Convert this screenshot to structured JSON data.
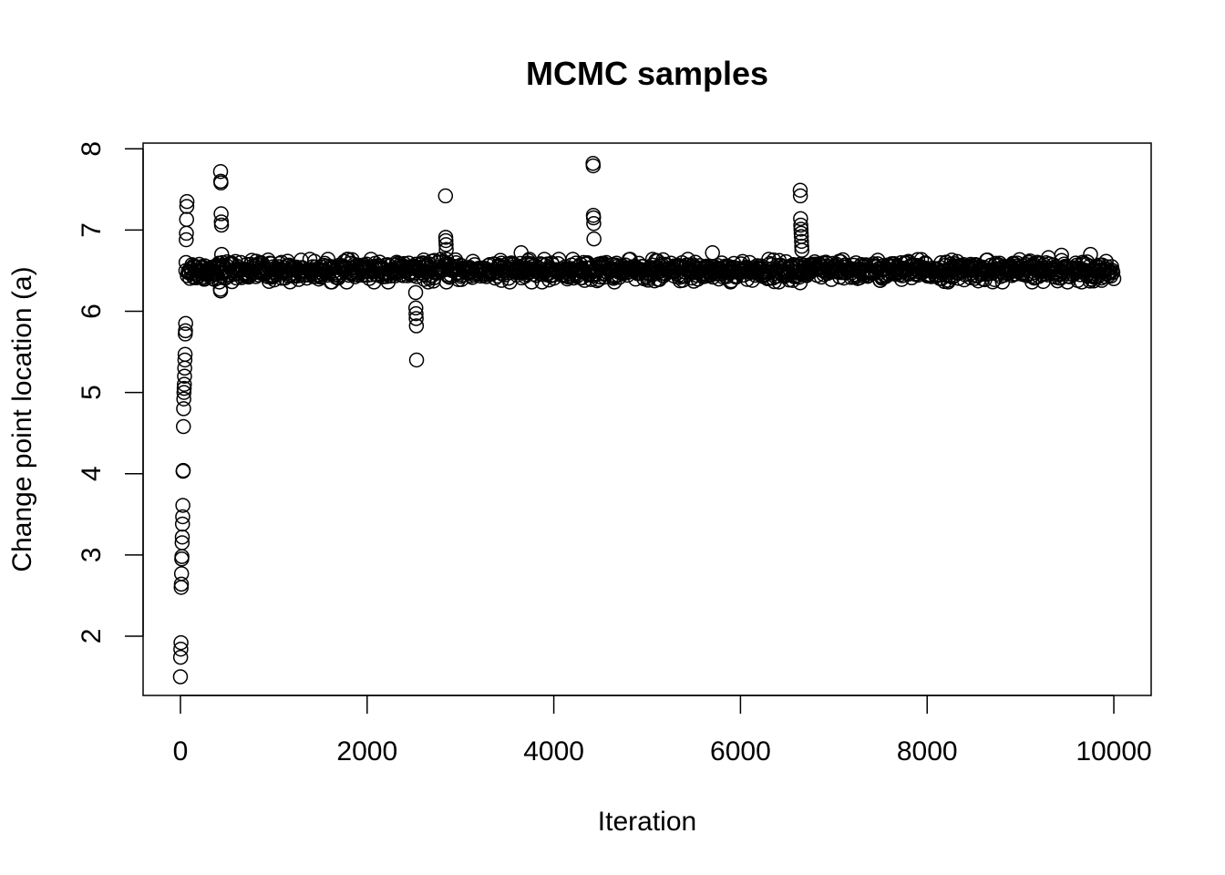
{
  "chart_data": {
    "type": "scatter",
    "title": "MCMC samples",
    "xlabel": "Iteration",
    "ylabel": "Change point location (a)",
    "xlim": [
      -400,
      10400
    ],
    "ylim": [
      1.27,
      8.07
    ],
    "xticks": [
      0,
      2000,
      4000,
      6000,
      8000,
      10000
    ],
    "yticks": [
      2,
      3,
      4,
      5,
      6,
      7,
      8
    ],
    "marker": "open-circle",
    "color": "#000000",
    "grid": false,
    "legend": "none",
    "burn_in": {
      "x": [
        0,
        2,
        4,
        6,
        8,
        10,
        12,
        14,
        16,
        18,
        20,
        22,
        24,
        26,
        28,
        30,
        32,
        34,
        36,
        38,
        40,
        42,
        44,
        46,
        48,
        50,
        52,
        54,
        56,
        58,
        60,
        62,
        64,
        66,
        68,
        70
      ],
      "y": [
        1.5,
        1.74,
        1.84,
        1.92,
        2.6,
        2.64,
        2.77,
        2.95,
        2.98,
        3.15,
        3.22,
        3.38,
        3.47,
        3.61,
        4.03,
        4.04,
        4.58,
        4.8,
        4.92,
        5.0,
        5.05,
        5.1,
        5.2,
        5.3,
        5.4,
        5.47,
        5.72,
        5.76,
        5.85,
        6.5,
        6.6,
        6.88,
        6.96,
        7.13,
        7.29,
        7.35
      ]
    },
    "bulk": {
      "x_range": [
        70,
        10000
      ],
      "center": 6.5,
      "spread": 0.1,
      "n": 1500
    },
    "outliers": [
      {
        "x": 430,
        "y": 7.72
      },
      {
        "x": 432,
        "y": 7.6
      },
      {
        "x": 434,
        "y": 7.58
      },
      {
        "x": 436,
        "y": 7.2
      },
      {
        "x": 438,
        "y": 7.1
      },
      {
        "x": 440,
        "y": 7.06
      },
      {
        "x": 442,
        "y": 6.7
      },
      {
        "x": 428,
        "y": 6.27
      },
      {
        "x": 430,
        "y": 6.25
      },
      {
        "x": 2520,
        "y": 6.23
      },
      {
        "x": 2522,
        "y": 6.04
      },
      {
        "x": 2524,
        "y": 5.97
      },
      {
        "x": 2526,
        "y": 5.91
      },
      {
        "x": 2528,
        "y": 5.82
      },
      {
        "x": 2530,
        "y": 5.4
      },
      {
        "x": 2840,
        "y": 7.42
      },
      {
        "x": 2842,
        "y": 6.91
      },
      {
        "x": 2844,
        "y": 6.87
      },
      {
        "x": 2846,
        "y": 6.82
      },
      {
        "x": 2848,
        "y": 6.76
      },
      {
        "x": 3650,
        "y": 6.72
      },
      {
        "x": 3440,
        "y": 6.38
      },
      {
        "x": 4420,
        "y": 7.82
      },
      {
        "x": 4422,
        "y": 7.79
      },
      {
        "x": 4424,
        "y": 7.18
      },
      {
        "x": 4426,
        "y": 7.15
      },
      {
        "x": 4428,
        "y": 7.08
      },
      {
        "x": 4430,
        "y": 6.89
      },
      {
        "x": 4330,
        "y": 6.38
      },
      {
        "x": 5700,
        "y": 6.72
      },
      {
        "x": 5500,
        "y": 6.37
      },
      {
        "x": 6640,
        "y": 7.49
      },
      {
        "x": 6642,
        "y": 7.42
      },
      {
        "x": 6644,
        "y": 7.14
      },
      {
        "x": 6646,
        "y": 7.06
      },
      {
        "x": 6648,
        "y": 7.01
      },
      {
        "x": 6650,
        "y": 6.96
      },
      {
        "x": 6652,
        "y": 6.92
      },
      {
        "x": 6654,
        "y": 6.86
      },
      {
        "x": 6656,
        "y": 6.8
      },
      {
        "x": 6658,
        "y": 6.75
      },
      {
        "x": 6640,
        "y": 6.35
      },
      {
        "x": 6560,
        "y": 6.38
      },
      {
        "x": 9300,
        "y": 6.66
      },
      {
        "x": 9440,
        "y": 6.69
      },
      {
        "x": 9750,
        "y": 6.7
      }
    ]
  }
}
